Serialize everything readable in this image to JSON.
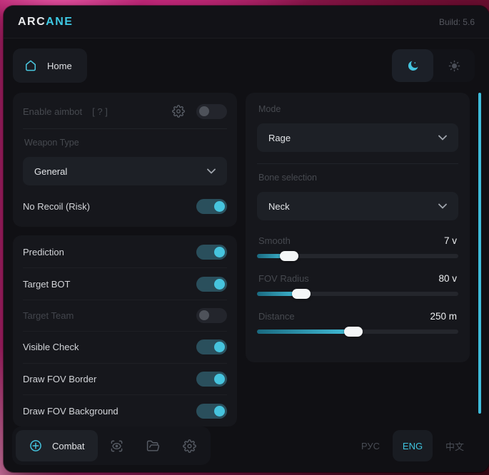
{
  "titlebar": {
    "logo_primary": "ARC",
    "logo_accent": "ANE",
    "build": "Build: 5.6"
  },
  "nav": {
    "home_label": "Home",
    "theme_active": "dark"
  },
  "aimbot": {
    "enable_label": "Enable aimbot",
    "enable_hint": "[ ? ]",
    "enable_state": "off",
    "weapon_type_label": "Weapon Type",
    "weapon_type_value": "General",
    "no_recoil_label": "No Recoil (Risk)",
    "no_recoil_state": "on"
  },
  "toggles": [
    {
      "label": "Prediction",
      "state": "on"
    },
    {
      "label": "Target BOT",
      "state": "on"
    },
    {
      "label": "Target Team",
      "state": "off"
    },
    {
      "label": "Visible Check",
      "state": "on"
    },
    {
      "label": "Draw FOV Border",
      "state": "on"
    },
    {
      "label": "Draw FOV Background",
      "state": "on"
    }
  ],
  "targeting": {
    "mode_label": "Mode",
    "mode_value": "Rage",
    "bone_label": "Bone selection",
    "bone_value": "Neck",
    "sliders": [
      {
        "label": "Smooth",
        "value": "7 v",
        "percent": 16
      },
      {
        "label": "FOV Radius",
        "value": "80 v",
        "percent": 22
      },
      {
        "label": "Distance",
        "value": "250 m",
        "percent": 48
      }
    ]
  },
  "footer": {
    "combat_label": "Combat",
    "active_language": "ENG",
    "languages": [
      {
        "label": "РУС"
      },
      {
        "label": "ENG"
      },
      {
        "label": "中文"
      }
    ]
  },
  "icons": {
    "home": "home-outline",
    "dark_mode": "moon-crescent",
    "light_mode": "sun",
    "aimbot_settings": "gear",
    "combat": "circle-plus-crosshair",
    "visuals": "scan-eye",
    "configs": "folder-open",
    "settings": "gear",
    "dropdown": "chevron-down"
  },
  "colors": {
    "accent": "#42c4de",
    "toggle_track_on": "#2a4f5c",
    "slider_fill_start": "#1a6a80",
    "slider_fill_end": "#43bfda",
    "scrollbar": "#3ebcdb",
    "wallpaper_pink": "#c22579"
  }
}
